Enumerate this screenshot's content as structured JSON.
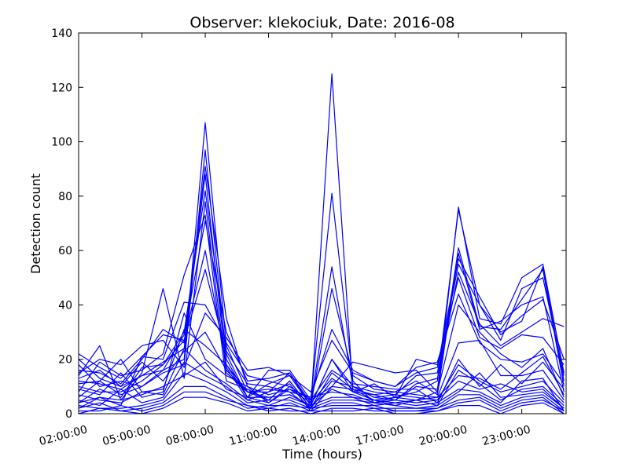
{
  "chart_data": {
    "type": "line",
    "title": "Observer: klekociuk, Date: 2016-08",
    "xlabel": "Time (hours)",
    "ylabel": "Detection count",
    "x": [
      2,
      3,
      4,
      5,
      6,
      7,
      8,
      9,
      10,
      11,
      12,
      13,
      14,
      15,
      16,
      17,
      18,
      19,
      20,
      21,
      22,
      23,
      24,
      25
    ],
    "x_tick_values": [
      2,
      5,
      8,
      11,
      14,
      17,
      20,
      23
    ],
    "x_tick_labels": [
      "02:00:00",
      "05:00:00",
      "08:00:00",
      "11:00:00",
      "14:00:00",
      "17:00:00",
      "20:00:00",
      "23:00:00"
    ],
    "xlim": [
      2,
      25.1
    ],
    "ylim": [
      0,
      140
    ],
    "y_ticks": [
      0,
      20,
      40,
      60,
      80,
      100,
      120,
      140
    ],
    "grid": false,
    "line_color": "#0000ff",
    "series": [
      {
        "values": [
          20,
          13,
          10,
          14,
          16,
          20,
          107,
          25,
          8,
          5,
          12,
          2,
          125,
          8,
          5,
          3,
          5,
          8,
          76,
          35,
          33,
          50,
          55,
          15
        ]
      },
      {
        "values": [
          18,
          10,
          12,
          10,
          15,
          18,
          97,
          20,
          6,
          4,
          10,
          5,
          81,
          12,
          4,
          6,
          8,
          12,
          75,
          40,
          30,
          34,
          54,
          12
        ]
      },
      {
        "values": [
          16,
          15,
          11,
          20,
          31,
          26,
          91,
          35,
          10,
          7,
          9,
          4,
          54,
          10,
          6,
          5,
          10,
          9,
          61,
          32,
          31,
          42,
          53,
          10
        ]
      },
      {
        "values": [
          12,
          11,
          9,
          14,
          19,
          24,
          88,
          17,
          5,
          8,
          15,
          3,
          46,
          14,
          9,
          8,
          12,
          7,
          59,
          31,
          34,
          40,
          43,
          8
        ]
      },
      {
        "values": [
          10,
          8,
          8,
          12,
          18,
          30,
          82,
          23,
          11,
          10,
          8,
          6,
          31,
          16,
          12,
          10,
          15,
          17,
          57,
          43,
          29,
          36,
          42,
          20
        ]
      },
      {
        "values": [
          14,
          25,
          5,
          15,
          46,
          13,
          78,
          15,
          8,
          6,
          7,
          3,
          20,
          10,
          8,
          7,
          14,
          15,
          55,
          40,
          27,
          46,
          50,
          14
        ]
      },
      {
        "values": [
          8,
          19,
          14,
          16,
          22,
          51,
          73,
          12,
          9,
          5,
          12,
          2,
          15,
          9,
          7,
          5,
          11,
          13,
          52,
          33,
          25,
          30,
          35,
          32
        ]
      },
      {
        "values": [
          6,
          12,
          7,
          10,
          16,
          29,
          71,
          30,
          12,
          13,
          15,
          4,
          13,
          8,
          11,
          6,
          20,
          18,
          50,
          28,
          24,
          29,
          28,
          18
        ]
      },
      {
        "values": [
          4,
          9,
          6,
          17,
          18,
          27,
          60,
          18,
          6,
          16,
          16,
          5,
          10,
          19,
          17,
          15,
          16,
          8,
          40,
          30,
          22,
          17,
          24,
          6
        ]
      },
      {
        "values": [
          2,
          6,
          3,
          21,
          29,
          27,
          53,
          22,
          6,
          11,
          14,
          3,
          20,
          8,
          7,
          8,
          7,
          6,
          26,
          27,
          14,
          14,
          16,
          5
        ]
      },
      {
        "values": [
          22,
          17,
          13,
          21,
          20,
          41,
          40,
          26,
          14,
          12,
          10,
          5,
          16,
          11,
          10,
          9,
          9,
          4,
          20,
          10,
          18,
          11,
          19,
          9
        ]
      },
      {
        "values": [
          13,
          16,
          10,
          19,
          12,
          23,
          30,
          16,
          8,
          9,
          8,
          2,
          12,
          10,
          6,
          7,
          6,
          5,
          18,
          12,
          8,
          10,
          12,
          4
        ]
      },
      {
        "values": [
          11,
          12,
          20,
          8,
          9,
          31,
          25,
          18,
          8,
          8,
          11,
          1,
          10,
          9,
          5,
          6,
          5,
          3,
          16,
          11,
          5,
          9,
          10,
          3
        ]
      },
      {
        "values": [
          9,
          7,
          15,
          6,
          8,
          37,
          20,
          14,
          10,
          4,
          9,
          6,
          8,
          7,
          4,
          5,
          4,
          5,
          12,
          9,
          11,
          8,
          9,
          2
        ]
      },
      {
        "values": [
          7,
          5,
          4,
          8,
          7,
          24,
          16,
          11,
          5,
          3,
          6,
          3,
          6,
          6,
          3,
          4,
          3,
          4,
          9,
          8,
          4,
          12,
          13,
          1
        ]
      },
      {
        "values": [
          5,
          3,
          9,
          4,
          6,
          19,
          14,
          10,
          4,
          5,
          5,
          2,
          5,
          5,
          4,
          3,
          2,
          3,
          8,
          15,
          6,
          7,
          8,
          2
        ]
      },
      {
        "values": [
          3,
          2,
          2,
          3,
          5,
          15,
          12,
          8,
          3,
          2,
          4,
          1,
          4,
          4,
          2,
          2,
          2,
          2,
          7,
          7,
          3,
          6,
          7,
          1
        ]
      },
      {
        "values": [
          2,
          4,
          1,
          2,
          4,
          10,
          10,
          6,
          2,
          3,
          3,
          2,
          3,
          3,
          3,
          1,
          1,
          2,
          5,
          6,
          2,
          5,
          6,
          0
        ]
      },
      {
        "values": [
          1,
          1,
          3,
          1,
          3,
          8,
          8,
          5,
          3,
          1,
          2,
          0,
          2,
          2,
          1,
          1,
          1,
          1,
          4,
          5,
          1,
          4,
          5,
          1
        ]
      },
      {
        "values": [
          0,
          2,
          1,
          0,
          2,
          6,
          6,
          4,
          1,
          2,
          1,
          1,
          1,
          1,
          2,
          0,
          0,
          1,
          3,
          3,
          0,
          3,
          4,
          0
        ]
      },
      {
        "values": [
          4,
          6,
          5,
          7,
          10,
          14,
          19,
          9,
          6,
          6,
          7,
          3,
          9,
          6,
          5,
          4,
          5,
          6,
          14,
          13,
          9,
          15,
          21,
          7
        ]
      },
      {
        "values": [
          15,
          20,
          18,
          25,
          27,
          17,
          37,
          28,
          16,
          17,
          14,
          8,
          27,
          15,
          12,
          10,
          17,
          19,
          44,
          26,
          20,
          19,
          22,
          11
        ]
      }
    ]
  }
}
